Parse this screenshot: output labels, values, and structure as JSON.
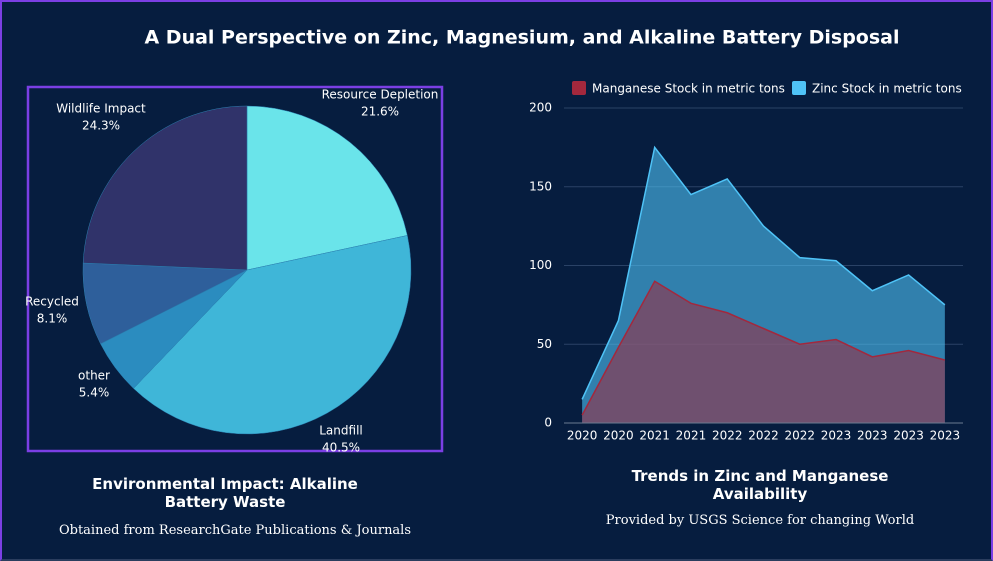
{
  "title": "A Dual Perspective on Zinc, Magnesium, and Alkaline Battery Disposal",
  "chart_data": [
    {
      "type": "pie",
      "title": "Environmental Impact: Alkaline Battery Waste",
      "subtitle": "Obtained from ResearchGate Publications & Journals",
      "categories": [
        "Resource Depletion",
        "Landfill",
        "other",
        "Recycled",
        "Wildlife Impact"
      ],
      "values": [
        21.6,
        40.5,
        5.4,
        8.1,
        24.3
      ],
      "value_labels": [
        "21.6%",
        "40.5%",
        "5.4%",
        "8.1%",
        "24.3%"
      ],
      "colors": [
        "#6ae4ea",
        "#3fb6d8",
        "#2b8cbf",
        "#2e5f9b",
        "#30336a"
      ]
    },
    {
      "type": "area",
      "title": "Trends in Zinc and Manganese Availability",
      "subtitle": "Provided by USGS Science for changing World",
      "categories": [
        "2020",
        "2020",
        "2021",
        "2021",
        "2022",
        "2022",
        "2022",
        "2023",
        "2023",
        "2023",
        "2023"
      ],
      "series": [
        {
          "name": "Manganese Stock in metric tons",
          "color": "#a3283d",
          "values": [
            5,
            48,
            90,
            76,
            70,
            60,
            50,
            53,
            42,
            46,
            40
          ]
        },
        {
          "name": "Zinc Stock in metric tons",
          "color": "#4fc3f7",
          "values": [
            15,
            65,
            175,
            145,
            155,
            125,
            105,
            103,
            84,
            94,
            75
          ]
        }
      ],
      "ylim": [
        0,
        200
      ],
      "yticks": [
        0,
        50,
        100,
        150,
        200
      ],
      "grid": true,
      "legend": "top"
    }
  ]
}
